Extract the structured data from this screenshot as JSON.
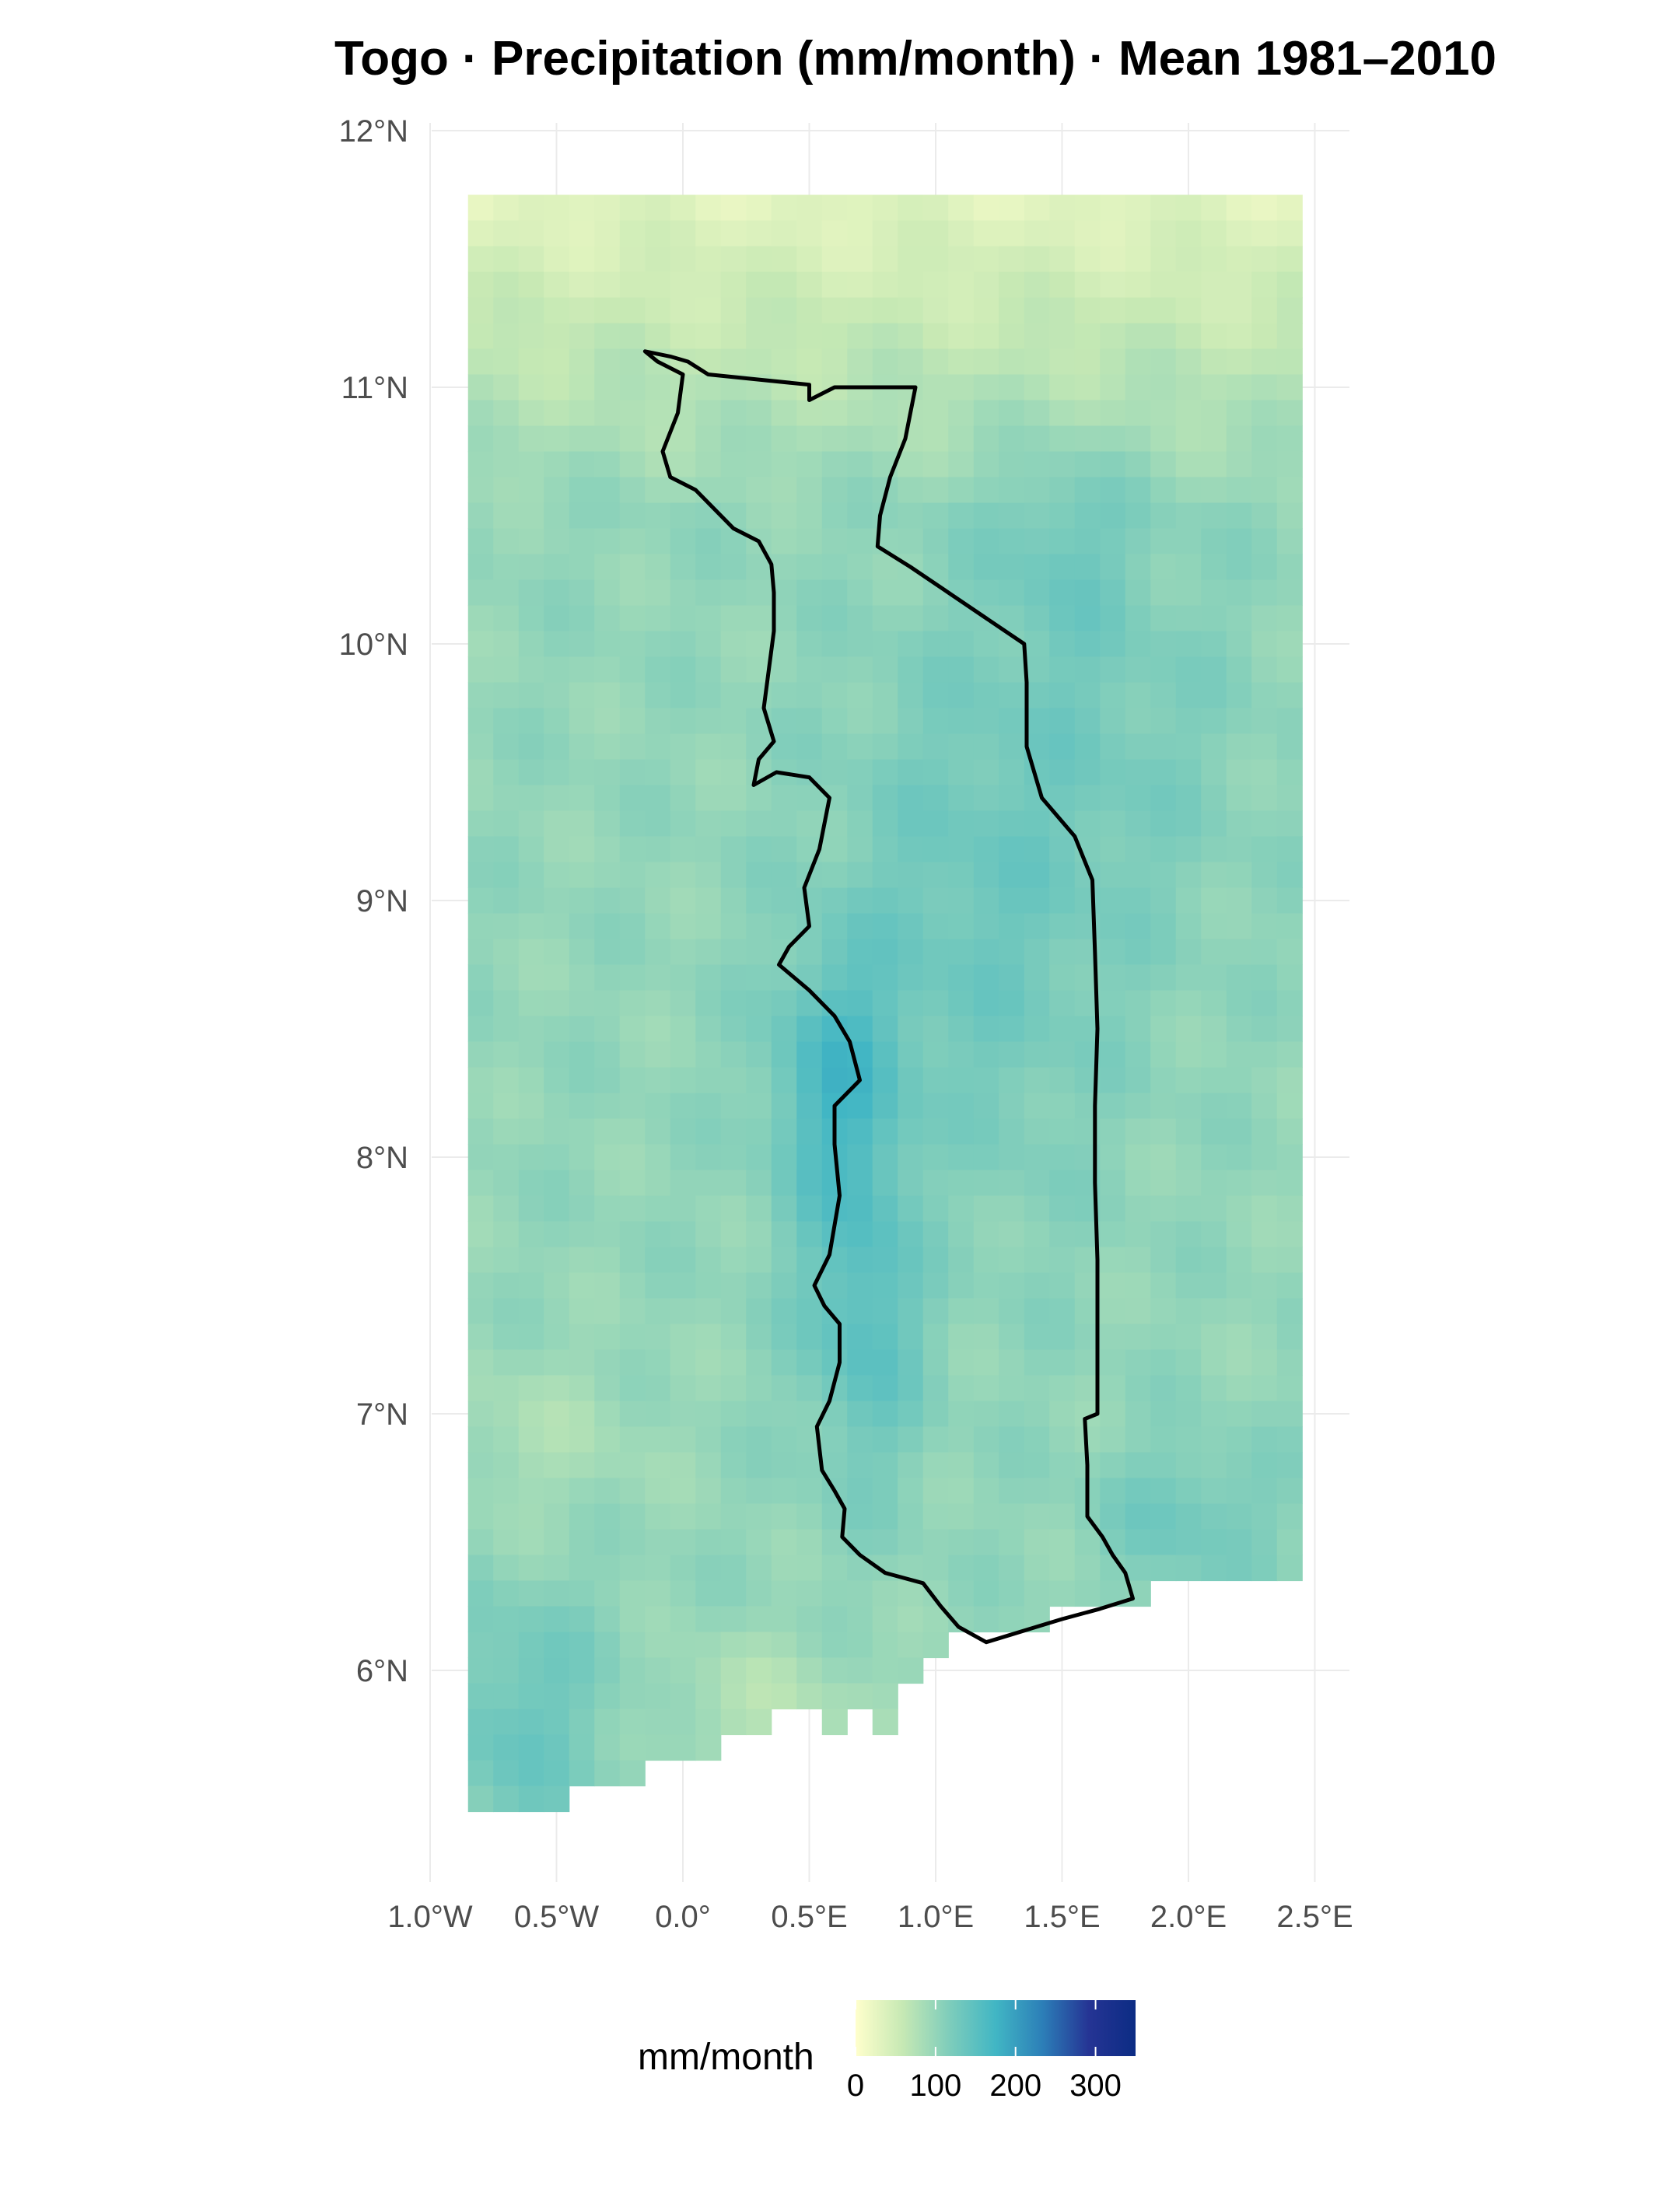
{
  "title": "Togo · Precipitation (mm/month) · Mean 1981–2010",
  "axes": {
    "lat_ticks": [
      {
        "value": 12,
        "label": "12°N"
      },
      {
        "value": 11,
        "label": "11°N"
      },
      {
        "value": 10,
        "label": "10°N"
      },
      {
        "value": 9,
        "label": "9°N"
      },
      {
        "value": 8,
        "label": "8°N"
      },
      {
        "value": 7,
        "label": "7°N"
      },
      {
        "value": 6,
        "label": "6°N"
      }
    ],
    "lon_ticks": [
      {
        "value": -1.0,
        "label": "1.0°W"
      },
      {
        "value": -0.5,
        "label": "0.5°W"
      },
      {
        "value": 0.0,
        "label": "0.0°"
      },
      {
        "value": 0.5,
        "label": "0.5°E"
      },
      {
        "value": 1.0,
        "label": "1.0°E"
      },
      {
        "value": 1.5,
        "label": "1.5°E"
      },
      {
        "value": 2.0,
        "label": "2.0°E"
      },
      {
        "value": 2.5,
        "label": "2.5°E"
      }
    ],
    "lon_range": [
      -1.0,
      2.6
    ],
    "lat_range": [
      5.2,
      12.0
    ]
  },
  "legend": {
    "title": "mm/month",
    "ticks": [
      {
        "value": 0,
        "label": "0"
      },
      {
        "value": 100,
        "label": "100"
      },
      {
        "value": 200,
        "label": "200"
      },
      {
        "value": 300,
        "label": "300"
      }
    ],
    "min": 0,
    "max": 350,
    "colors": [
      "#ffffcc",
      "#c7e9b4",
      "#7fcdbb",
      "#41b6c4",
      "#2c7fb8",
      "#253494",
      "#0c2c84"
    ]
  },
  "raster": {
    "cell_deg": 0.1,
    "lon_min": -0.85,
    "lon_max": 2.45,
    "lat_min": 5.45,
    "lat_max": 11.75
  },
  "boundary_color": "#000000",
  "grid_color": "#ebebeb"
}
